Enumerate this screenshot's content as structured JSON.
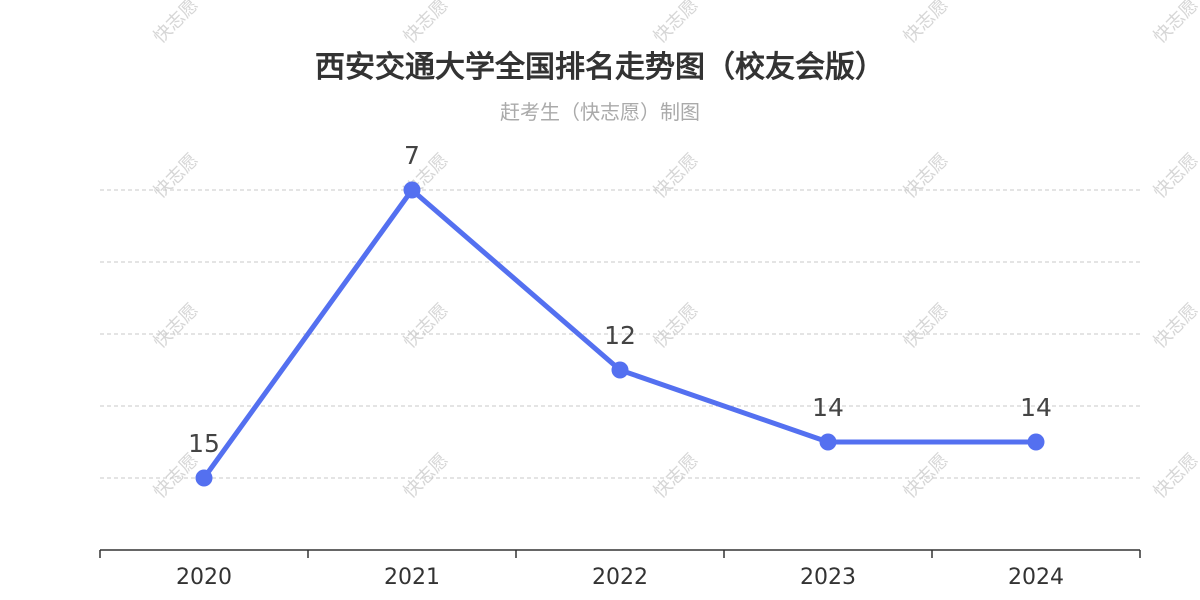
{
  "chart_data": {
    "type": "line",
    "title": "西安交通大学全国排名走势图（校友会版）",
    "subtitle": "赶考生（快志愿）制图",
    "categories": [
      "2020",
      "2021",
      "2022",
      "2023",
      "2024"
    ],
    "series": [
      {
        "values": [
          15,
          7,
          12,
          14,
          14
        ]
      }
    ],
    "ylim": [
      18,
      5
    ],
    "y_inverted": true,
    "grid": true,
    "legend": "none",
    "line_color": "#5470f0",
    "gridline_color": "#c8c8c8",
    "watermark_text": "快志愿"
  }
}
